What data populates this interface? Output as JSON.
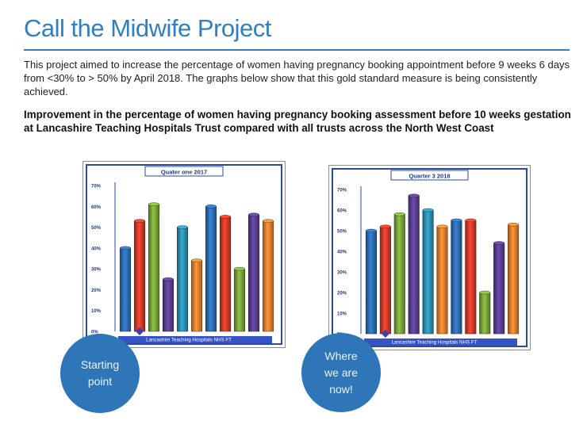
{
  "page": {
    "title": "Call the Midwife Project",
    "intro": "This project aimed to increase the percentage of women having pregnancy booking appointment before 9 weeks 6 days from <30% to > 50% by April 2018. The graphs below show that this gold standard measure is being consistently achieved.",
    "subheading": "Improvement in the percentage of women having pregnancy booking assessment before 10 weeks gestation at Lancashire Teaching Hospitals Trust compared with all trusts across the North West Coast"
  },
  "bubbles": {
    "left": [
      "Starting",
      "point"
    ],
    "right": [
      "Where",
      "we are",
      "now!"
    ],
    "color": "#2e76b8"
  },
  "chart_data": [
    {
      "type": "bar",
      "title": "Quater one 2017",
      "ytick_labels": [
        "0%",
        "10%",
        "20%",
        "30%",
        "40%",
        "50%",
        "60%",
        "70%"
      ],
      "ylim": [
        0,
        70
      ],
      "values": [
        40,
        53,
        61,
        25,
        50,
        34,
        60,
        55,
        30,
        56,
        53
      ],
      "colors": [
        "#2e6db4",
        "#d23b2a",
        "#7aa33a",
        "#5b3f93",
        "#2d8fb1",
        "#ef7f2e",
        "#2e6db4",
        "#d23b2a",
        "#7aa33a",
        "#5b3f93",
        "#ef7f2e"
      ],
      "marker_index": 1,
      "xlabel": "Lancashire Teaching Hospitals NHS FT",
      "grid": false,
      "legend": "none"
    },
    {
      "type": "bar",
      "title": "Quarter 3 2018",
      "ytick_labels": [
        "0%",
        "10%",
        "20%",
        "30%",
        "40%",
        "50%",
        "60%",
        "70%"
      ],
      "ylim": [
        0,
        70
      ],
      "values": [
        50,
        52,
        58,
        67,
        60,
        52,
        55,
        55,
        20,
        44,
        53
      ],
      "colors": [
        "#2e6db4",
        "#d23b2a",
        "#7aa33a",
        "#5b3f93",
        "#2d8fb1",
        "#ef7f2e",
        "#2e6db4",
        "#d23b2a",
        "#7aa33a",
        "#5b3f93",
        "#ef7f2e"
      ],
      "marker_index": 1,
      "xlabel": "Lancashire Teaching Hospitals NHS FT",
      "grid": false,
      "legend": "none"
    }
  ]
}
